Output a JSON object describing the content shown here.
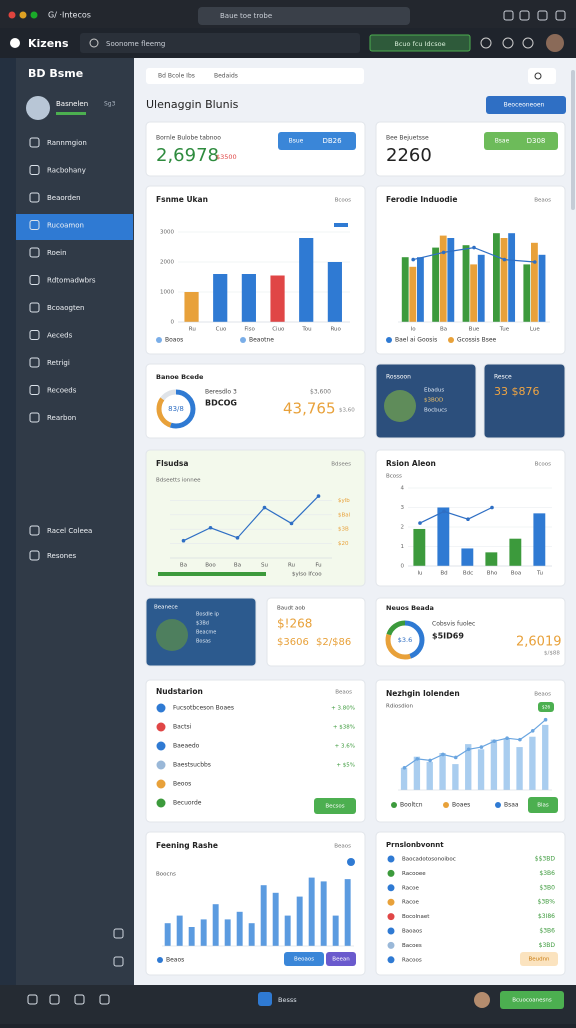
{
  "browser": {
    "tab": "G/ ·Intecos",
    "url": "Baue toe trobe"
  },
  "header": {
    "logo": "Kizens",
    "search": "Soonome fleemg",
    "action": "Bcuo fcu Idcsoe"
  },
  "sidebar": {
    "title": "BD Bsme",
    "user": "Basnelen",
    "user_tag": "Sg3",
    "menu": [
      "Rannmgion",
      "Racbohany",
      "Beaorden",
      "Rucoamon",
      "Roein",
      "Rdtomadwbrs",
      "Bcoaogten",
      "Aeceds",
      "Retrigi",
      "Recoeds",
      "Rearbon"
    ],
    "footer_menu": [
      "Racel Coleea",
      "Resones"
    ]
  },
  "breadcrumb": [
    "Bd Bcole Ibs",
    "Bedaids"
  ],
  "page_title": "Ulenaggin Blunis",
  "page_action": "Beoceoneoen",
  "kpis": [
    {
      "label": "Bornle Bulobe tabnoo",
      "value": "2,6978",
      "delta": "$3500",
      "buttons": [
        "Bsue",
        "DB26"
      ]
    },
    {
      "label": "Bee Bejuetsse",
      "value": "2260",
      "buttons": [
        "Bsae",
        "D308"
      ]
    }
  ],
  "charts": [
    {
      "title": "Fsnme Ukan",
      "menu": "Bcoos",
      "ylim": [
        0,
        3000
      ],
      "yticks": [
        0,
        1000,
        2000,
        3000
      ],
      "categories": [
        "Ru",
        "Cuo",
        "Fiso",
        "Ciuo",
        "Tou",
        "Ruo"
      ],
      "series": [
        {
          "type": "bar",
          "colors": [
            "#e8a13a",
            "#2f7ad3",
            "#2f7ad3",
            "#e04646",
            "#2f7ad3",
            "#2f7ad3"
          ],
          "values": [
            1000,
            1600,
            1600,
            1550,
            2800,
            2000
          ]
        }
      ],
      "legend": [
        {
          "label": "Boaos",
          "color": "#7aaee8"
        },
        {
          "label": "Beaotne",
          "color": "#7aaee8"
        }
      ]
    },
    {
      "title": "Ferodie Induodie",
      "menu": "Beaos",
      "ylim": [
        0,
        4000
      ],
      "categories": [
        "Io",
        "Ba",
        "Bue",
        "Tue",
        "Lue"
      ],
      "series": [
        {
          "type": "bar",
          "color": "#3c9a3c",
          "values": [
            2700,
            3100,
            3200,
            3700,
            2400
          ]
        },
        {
          "type": "bar",
          "color": "#e8a13a",
          "values": [
            2300,
            3600,
            2400,
            3500,
            3300
          ]
        },
        {
          "type": "bar",
          "color": "#2f7ad3",
          "values": [
            2700,
            3500,
            2800,
            3700,
            2800
          ]
        },
        {
          "type": "line",
          "color": "#2f6fc4",
          "values": [
            2600,
            2900,
            3100,
            2600,
            2500
          ]
        }
      ],
      "legend": [
        {
          "label": "Bael ai Goosis",
          "color": "#2f7ad3"
        },
        {
          "label": "Gcossis Bsee",
          "color": "#e8a13a"
        }
      ]
    },
    {
      "title": "Flsudsa",
      "menu": "Bdsees",
      "subtitle": "Bdseetts ionnee",
      "ylim": [
        0,
        5
      ],
      "yticks": [
        {
          "value": 1,
          "label": "$20"
        },
        {
          "value": 2,
          "label": "$3B"
        },
        {
          "value": 3,
          "label": "$Bal"
        },
        {
          "value": 4,
          "label": "$ylb"
        }
      ],
      "categories": [
        "Ba",
        "Boo",
        "Ba",
        "Su",
        "Ru",
        "Fu"
      ],
      "series": [
        {
          "type": "line",
          "color": "#2f6fc4",
          "values": [
            1.2,
            2.1,
            1.4,
            3.5,
            2.4,
            4.3
          ]
        }
      ],
      "footer": "$ylso Ifcoo"
    },
    {
      "title": "Rsion Aleon",
      "menu": "Bcoos",
      "subtitle": "Bcoss",
      "ylim": [
        0,
        4
      ],
      "yticks": [
        0,
        1,
        2,
        3,
        4
      ],
      "categories": [
        "Iu",
        "Bd",
        "Bdc",
        "Bho",
        "Boa",
        "Tu"
      ],
      "series": [
        {
          "type": "bar",
          "colors": [
            "#3c9a3c",
            "#2f7ad3",
            "#2f7ad3",
            "#3c9a3c",
            "#3c9a3c",
            "#2f7ad3"
          ],
          "values": [
            1.9,
            3.0,
            0.9,
            0.7,
            1.4,
            2.7
          ]
        },
        {
          "type": "line",
          "color": "#2f6fc4",
          "values": [
            2.2,
            2.8,
            2.4,
            3.0,
            null,
            null
          ]
        }
      ]
    },
    {
      "title": "Nezhgin Iolenden",
      "menu": "Beaos",
      "subtitle": "Rdiosdion",
      "badge": "$26",
      "action": "Blas",
      "ylim": [
        0,
        100
      ],
      "series": [
        {
          "type": "bar",
          "color": "#a9cdef",
          "values": [
            30,
            45,
            38,
            50,
            35,
            62,
            55,
            68,
            70,
            58,
            72,
            88
          ]
        },
        {
          "type": "line",
          "color": "#6aa5e0",
          "values": [
            30,
            42,
            40,
            48,
            44,
            55,
            58,
            66,
            70,
            68,
            80,
            95
          ]
        }
      ],
      "legend": [
        {
          "label": "Booltcn",
          "color": "#3c9a3c"
        },
        {
          "label": "Boaes",
          "color": "#e8a13a"
        },
        {
          "label": "Bsaa",
          "color": "#2f7ad3"
        }
      ]
    },
    {
      "title": "Feening Rashe",
      "menu": "Beaos",
      "subtitle": "Boocns",
      "buttons": [
        "Beoaos",
        "Beean"
      ],
      "ylim": [
        0,
        100
      ],
      "series": [
        {
          "type": "bar",
          "color": "#5b9be0",
          "values": [
            30,
            40,
            25,
            35,
            55,
            35,
            45,
            30,
            80,
            70,
            40,
            65,
            90,
            85,
            40,
            88
          ]
        }
      ],
      "legend": [
        {
          "label": "Beaos",
          "color": "#2f7ad3"
        }
      ]
    }
  ],
  "summary": {
    "title": "Banoe Bcede",
    "label": "Beresdlo 3",
    "sub": "BDCOG",
    "center": "83/8",
    "value": "43,765",
    "note": "$3,600",
    "note2": "$3,60",
    "segments": [
      {
        "value": 55,
        "color": "#2f7ad3"
      },
      {
        "value": 30,
        "color": "#e8a13a"
      },
      {
        "value": 15,
        "color": "#dfe3e8"
      }
    ]
  },
  "promo": {
    "title": "Rossoon",
    "lines": [
      "Ebadus",
      "$3BOD",
      "Bocbucs"
    ]
  },
  "mini": {
    "title": "Resce",
    "value": "33 $876"
  },
  "promo2": {
    "title": "Beanece",
    "lines": [
      "Bosdle ip",
      "$3Bd",
      "Beacme",
      "Bosas"
    ]
  },
  "stat": {
    "title": "Baudt aob",
    "value": "$!268",
    "values": [
      "$3606",
      "$2/$86"
    ]
  },
  "donut2": {
    "title": "Neuos Beada",
    "center": "$3.6",
    "label": "Cobsvis fuolec",
    "sub": "$5ID69",
    "value": "2,6019",
    "note": "$/$88",
    "segments": [
      {
        "value": 45,
        "color": "#2f7ad3"
      },
      {
        "value": 35,
        "color": "#e8a13a"
      },
      {
        "value": 20,
        "color": "#3c9a3c"
      }
    ]
  },
  "activity": {
    "title": "Nudstarion",
    "menu": "Beaos",
    "button": "Becsos",
    "items": [
      {
        "label": "Fucsotbceson Boaes",
        "value": "+ 3.80%",
        "color": "#2f7ad3"
      },
      {
        "label": "Bactsi",
        "value": "+ $38%",
        "color": "#e04646"
      },
      {
        "label": "Baeaedo",
        "value": "+ 3.6%",
        "color": "#2f7ad3"
      },
      {
        "label": "Baestsucbbs",
        "value": "+ $5%",
        "color": "#9ab8d8"
      },
      {
        "label": "Beoos",
        "color": "#e8a13a"
      },
      {
        "label": "Becuorde",
        "color": "#3c9a3c"
      }
    ]
  },
  "transactions": {
    "title": "Prnslonbvonnt",
    "button": "Beudnn",
    "items": [
      {
        "label": "Baocadotosonoiboc",
        "value": "$$3BD",
        "color": "#2f7ad3"
      },
      {
        "label": "Racooee",
        "value": "$3B6",
        "color": "#3c9a3c"
      },
      {
        "label": "Racoe",
        "value": "$3B0",
        "color": "#2f7ad3"
      },
      {
        "label": "Racoe",
        "value": "$3B%",
        "color": "#e8a13a"
      },
      {
        "label": "Bocolnaet",
        "value": "$3I86",
        "color": "#e04646"
      },
      {
        "label": "Baoaos",
        "value": "$3B6",
        "color": "#2f7ad3"
      },
      {
        "label": "Bacoes",
        "value": "$3BD",
        "color": "#9ab8d8"
      },
      {
        "label": "Racoos",
        "value": "$3B%",
        "color": "#2f7ad3"
      }
    ]
  },
  "footer": {
    "center": "Besss",
    "action": "Bcuocoanesns"
  }
}
